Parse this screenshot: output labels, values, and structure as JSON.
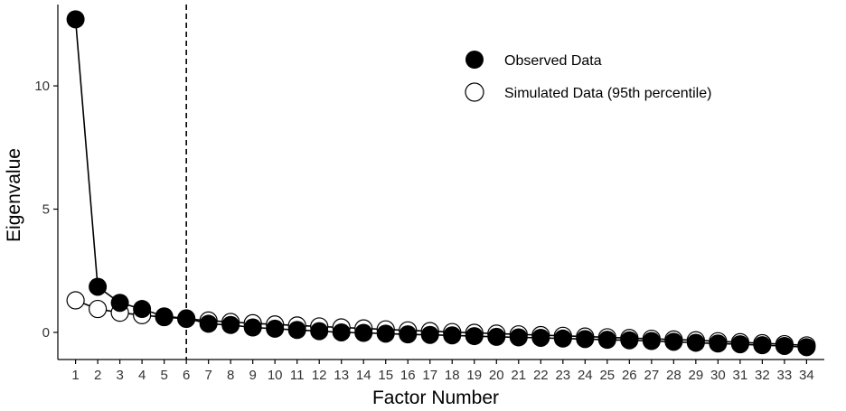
{
  "chart_data": {
    "type": "scatter",
    "xlabel": "Factor Number",
    "ylabel": "Eigenvalue",
    "x": [
      1,
      2,
      3,
      4,
      5,
      6,
      7,
      8,
      9,
      10,
      11,
      12,
      13,
      14,
      15,
      16,
      17,
      18,
      19,
      20,
      21,
      22,
      23,
      24,
      25,
      26,
      27,
      28,
      29,
      30,
      31,
      32,
      33,
      34
    ],
    "xticks": [
      "1",
      "2",
      "3",
      "4",
      "5",
      "6",
      "7",
      "8",
      "9",
      "10",
      "11",
      "12",
      "13",
      "14",
      "15",
      "16",
      "17",
      "18",
      "19",
      "20",
      "21",
      "22",
      "23",
      "24",
      "25",
      "26",
      "27",
      "28",
      "29",
      "30",
      "31",
      "32",
      "33",
      "34"
    ],
    "yticks": [
      0,
      5,
      10
    ],
    "ytick_labels": [
      "0",
      "5",
      "10"
    ],
    "ylim": [
      -1.1,
      13.3
    ],
    "xlim": [
      0.2,
      34.8
    ],
    "vline_x": 6,
    "series": [
      {
        "name": "Observed Data",
        "marker": "filled-circle",
        "values": [
          12.7,
          1.85,
          1.2,
          0.95,
          0.65,
          0.57,
          0.35,
          0.3,
          0.2,
          0.15,
          0.1,
          0.05,
          0.0,
          -0.02,
          -0.05,
          -0.08,
          -0.1,
          -0.12,
          -0.15,
          -0.18,
          -0.2,
          -0.22,
          -0.25,
          -0.27,
          -0.3,
          -0.32,
          -0.35,
          -0.38,
          -0.42,
          -0.45,
          -0.48,
          -0.52,
          -0.55,
          -0.6
        ]
      },
      {
        "name": "Simulated Data (95th percentile)",
        "marker": "open-circle",
        "values": [
          1.3,
          0.95,
          0.8,
          0.7,
          0.62,
          0.55,
          0.48,
          0.42,
          0.37,
          0.32,
          0.28,
          0.24,
          0.2,
          0.16,
          0.12,
          0.08,
          0.05,
          0.01,
          -0.02,
          -0.05,
          -0.08,
          -0.11,
          -0.14,
          -0.17,
          -0.2,
          -0.23,
          -0.26,
          -0.29,
          -0.32,
          -0.36,
          -0.4,
          -0.44,
          -0.48,
          -0.53
        ]
      }
    ],
    "legend_position": "top-right",
    "grid": false,
    "colors": {
      "axis": "#000000",
      "observed_fill": "#000000",
      "simulated_fill": "#ffffff",
      "line": "#000000",
      "tick_text": "#333333"
    }
  }
}
